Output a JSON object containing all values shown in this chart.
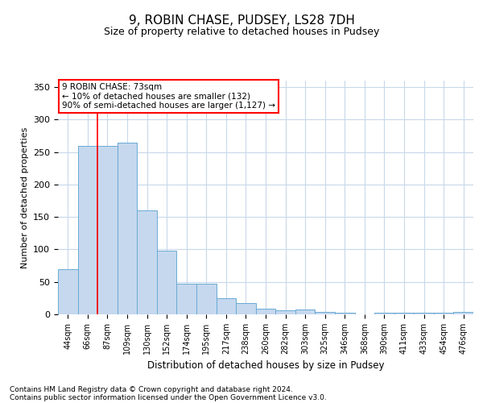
{
  "title": "9, ROBIN CHASE, PUDSEY, LS28 7DH",
  "subtitle": "Size of property relative to detached houses in Pudsey",
  "xlabel": "Distribution of detached houses by size in Pudsey",
  "ylabel": "Number of detached properties",
  "categories": [
    "44sqm",
    "66sqm",
    "87sqm",
    "109sqm",
    "130sqm",
    "152sqm",
    "174sqm",
    "195sqm",
    "217sqm",
    "238sqm",
    "260sqm",
    "282sqm",
    "303sqm",
    "325sqm",
    "346sqm",
    "368sqm",
    "390sqm",
    "411sqm",
    "433sqm",
    "454sqm",
    "476sqm"
  ],
  "values": [
    70,
    260,
    260,
    265,
    160,
    98,
    47,
    47,
    25,
    17,
    9,
    6,
    7,
    4,
    2,
    0,
    3,
    3,
    3,
    2,
    4
  ],
  "bar_color": "#c5d8ee",
  "bar_edge_color": "#6aaad4",
  "red_line_x": 1.5,
  "annotation_line1": "9 ROBIN CHASE: 73sqm",
  "annotation_line2": "← 10% of detached houses are smaller (132)",
  "annotation_line3": "90% of semi-detached houses are larger (1,127) →",
  "annotation_box_color": "white",
  "annotation_box_edge_color": "red",
  "red_line_color": "red",
  "footnote1": "Contains HM Land Registry data © Crown copyright and database right 2024.",
  "footnote2": "Contains public sector information licensed under the Open Government Licence v3.0.",
  "ylim": [
    0,
    360
  ],
  "background_color": "white",
  "grid_color": "#c8d8ea"
}
